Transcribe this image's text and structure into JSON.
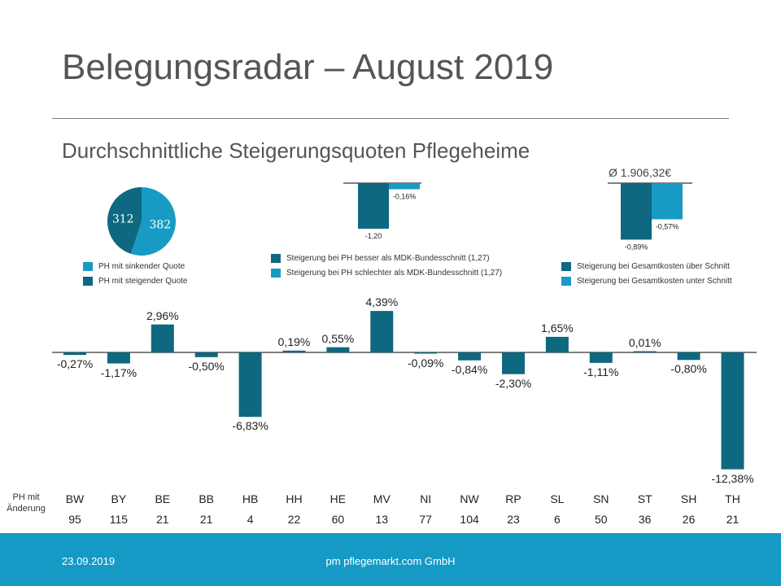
{
  "slide": {
    "title": "Belegungsradar – August 2019",
    "subtitle": "Durchschnittliche Steigerungsquoten Pflegeheime"
  },
  "colors": {
    "dark": "#0e6880",
    "light": "#179bc4",
    "footer": "#159ac6"
  },
  "pie": {
    "slices": [
      {
        "label": "PH  mit sinkender Quote",
        "value": 382,
        "color": "#179bc4"
      },
      {
        "label": "PH  mit steigender Quote",
        "value": 312,
        "color": "#0e6880"
      }
    ]
  },
  "mdk": {
    "bars": [
      {
        "value": -1.2,
        "label": "-1,20",
        "color": "#0e6880"
      },
      {
        "value": -0.16,
        "label": "-0,16%",
        "color": "#179bc4"
      }
    ],
    "legend": [
      "Steigerung bei PH  besser als MDK-Bundesschnitt (1,27)",
      "Steigerung bei PH  schlechter als MDK-Bundesschnitt (1,27)"
    ]
  },
  "costs": {
    "header": "Ø 1.906,32€",
    "bars": [
      {
        "value": -0.89,
        "label": "-0,89%",
        "color": "#0e6880"
      },
      {
        "value": -0.57,
        "label": "-0,57%",
        "color": "#179bc4"
      }
    ],
    "legend": [
      "Steigerung bei Gesamtkosten über Schnitt",
      "Steigerung bei Gesamtkosten unter Schnitt"
    ]
  },
  "chart_data": [
    {
      "type": "pie",
      "title": "",
      "categories": [
        "PH  mit sinkender Quote",
        "PH  mit steigender Quote"
      ],
      "values": [
        382,
        312
      ]
    },
    {
      "type": "bar",
      "title": "",
      "categories": [
        "besser als MDK-Bundesschnitt",
        "schlechter als MDK-Bundesschnitt"
      ],
      "values": [
        -1.2,
        -0.16
      ]
    },
    {
      "type": "bar",
      "title": "Ø 1.906,32€",
      "categories": [
        "Gesamtkosten über Schnitt",
        "Gesamtkosten unter Schnitt"
      ],
      "values": [
        -0.89,
        -0.57
      ]
    },
    {
      "type": "bar",
      "title": "Durchschnittliche Steigerungsquoten Pflegeheime",
      "xlabel": "",
      "ylabel": "",
      "ylim": [
        -12.38,
        4.39
      ],
      "categories": [
        "BW",
        "BY",
        "BE",
        "BB",
        "HB",
        "HH",
        "HE",
        "MV",
        "NI",
        "NW",
        "RP",
        "SL",
        "SN",
        "ST",
        "SH",
        "TH"
      ],
      "values": [
        -0.27,
        -1.17,
        2.96,
        -0.5,
        -6.83,
        0.19,
        0.55,
        4.39,
        -0.09,
        -0.84,
        -2.3,
        1.65,
        -1.11,
        0.01,
        -0.8,
        -12.38
      ],
      "labels": [
        "-0,27%",
        "-1,17%",
        "2,96%",
        "-0,50%",
        "-6,83%",
        "0,19%",
        "0,55%",
        "4,39%",
        "-0,09%",
        "-0,84%",
        "-2,30%",
        "1,65%",
        "-1,11%",
        "0,01%",
        "-0,80%",
        "-12,38%"
      ],
      "ph_counts": [
        "95",
        "115",
        "21",
        "21",
        "4",
        "22",
        "60",
        "13",
        "77",
        "104",
        "23",
        "6",
        "50",
        "36",
        "26",
        "21"
      ],
      "row_label": "PH mit Änderung"
    }
  ],
  "footer": {
    "date": "23.09.2019",
    "company": "pm pflegemarkt.com GmbH"
  }
}
